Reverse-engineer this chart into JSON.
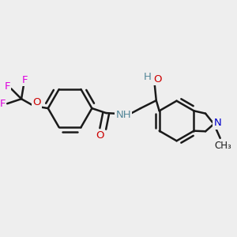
{
  "bg_color": "#eeeeee",
  "bond_color": "#1a1a1a",
  "bond_lw": 1.8,
  "O_color": "#cc0000",
  "F_color": "#dd00dd",
  "N_color": "#0000cc",
  "NH_color": "#558899",
  "OH_color": "#558899",
  "figsize": [
    3.0,
    3.0
  ],
  "dpi": 100,
  "xlim": [
    -0.05,
    2.95
  ],
  "ylim": [
    -0.05,
    2.95
  ]
}
